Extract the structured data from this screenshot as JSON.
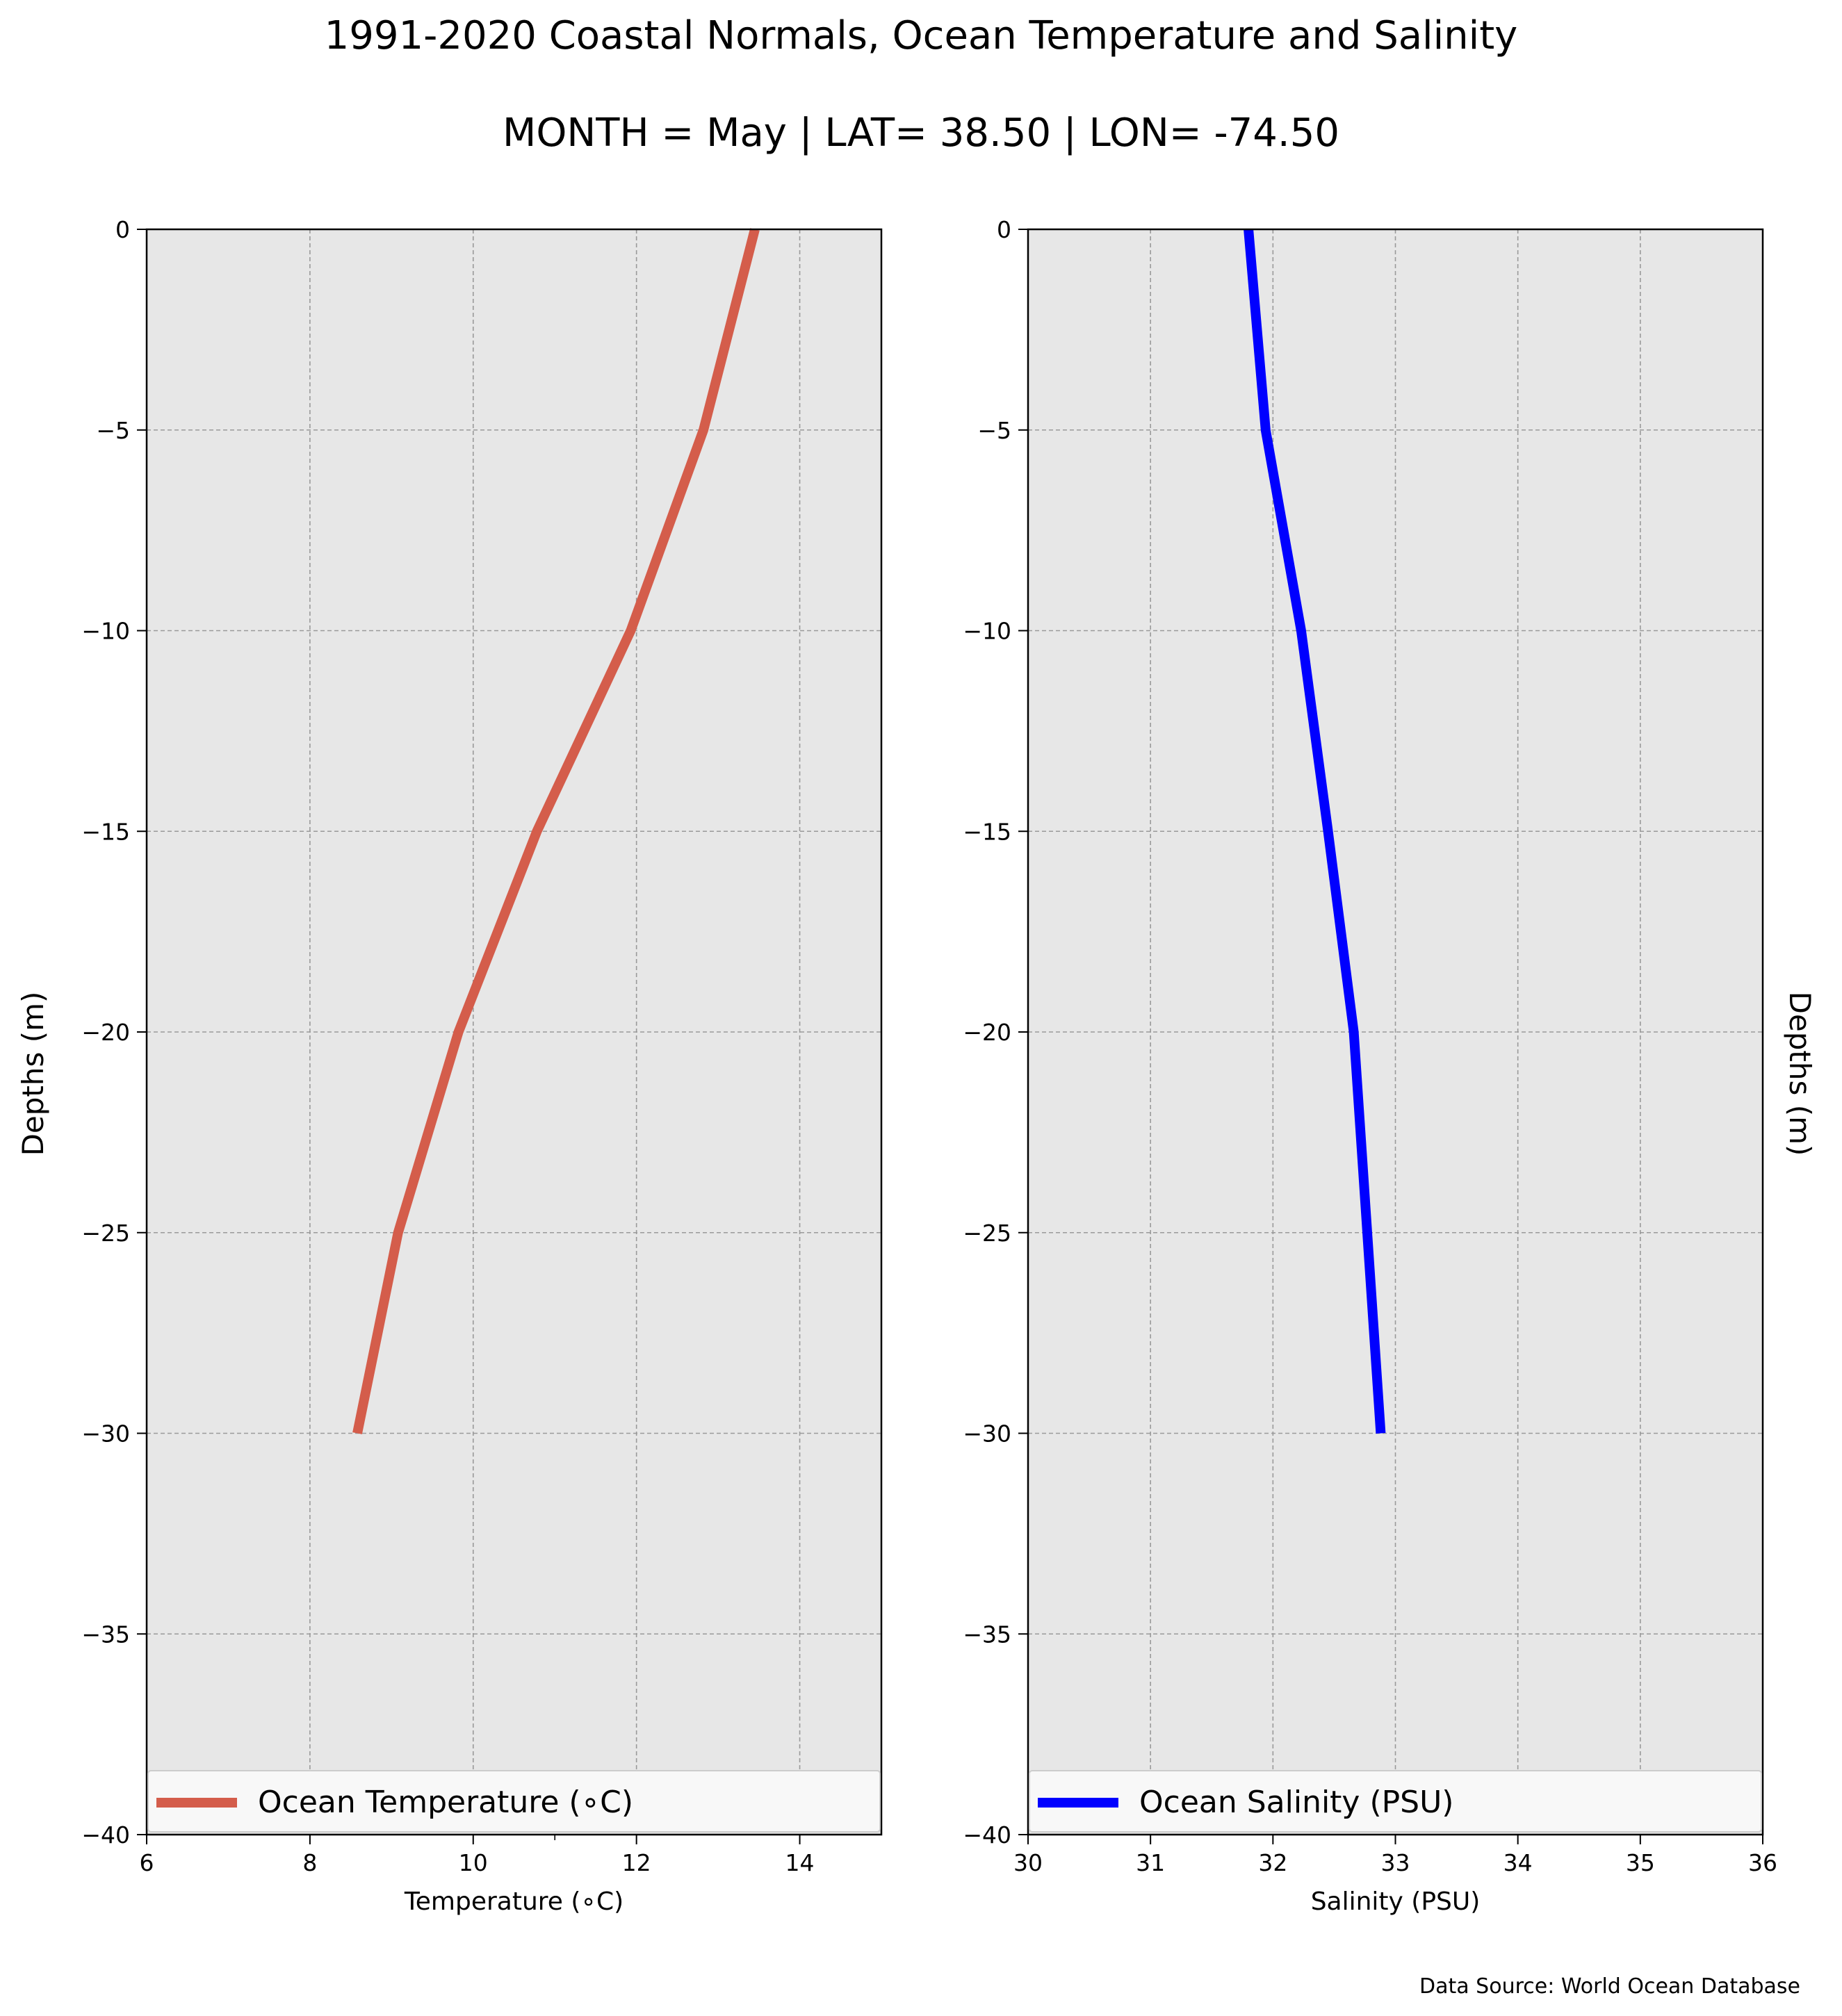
{
  "title": "1991-2020 Coastal Normals, Ocean Temperature and Salinity",
  "subtitle": "MONTH = May | LAT= 38.50 | LON= -74.50",
  "source_note": "Data Source: World Ocean Database",
  "colors": {
    "temperature": "#d45d4b",
    "salinity": "#0000ff",
    "plot_bg": "#e7e7e7",
    "grid": "#9a9a9a"
  },
  "chart_data": [
    {
      "type": "line",
      "xlabel": "Temperature ($^\\circ$C)",
      "xlabel_display": "Temperature (∘C)",
      "ylabel": "Depths (m)",
      "xlim": [
        6,
        15
      ],
      "ylim": [
        -40,
        0
      ],
      "xticks": [
        6,
        8,
        10,
        12,
        14
      ],
      "yticks": [
        0,
        -5,
        -10,
        -15,
        -20,
        -25,
        -30,
        -35,
        -40
      ],
      "ytick_labels": [
        "0",
        "−5",
        "−10",
        "−15",
        "−20",
        "−25",
        "−30",
        "−35",
        "−40"
      ],
      "grid": true,
      "legend_position": "lower-center",
      "series": [
        {
          "name": "Ocean Temperature (∘C)",
          "x": [
            13.45,
            12.82,
            11.93,
            10.78,
            9.82,
            9.08,
            8.58
          ],
          "y": [
            0,
            -5,
            -10,
            -15,
            -20,
            -25,
            -30
          ]
        }
      ]
    },
    {
      "type": "line",
      "xlabel": "Salinity (PSU)",
      "ylabel": "Depths (m)",
      "xlim": [
        30,
        36
      ],
      "ylim": [
        -40,
        0
      ],
      "xticks": [
        30,
        31,
        32,
        33,
        34,
        35,
        36
      ],
      "yticks": [
        0,
        -5,
        -10,
        -15,
        -20,
        -25,
        -30,
        -35,
        -40
      ],
      "ytick_labels": [
        "0",
        "−5",
        "−10",
        "−15",
        "−20",
        "−25",
        "−30",
        "−35",
        "−40"
      ],
      "grid": true,
      "legend_position": "lower-center",
      "series": [
        {
          "name": "Ocean Salinity (PSU)",
          "x": [
            31.8,
            31.94,
            32.23,
            32.45,
            32.66,
            32.77,
            32.88
          ],
          "y": [
            0,
            -5,
            -10,
            -15,
            -20,
            -25,
            -30
          ]
        }
      ]
    }
  ]
}
